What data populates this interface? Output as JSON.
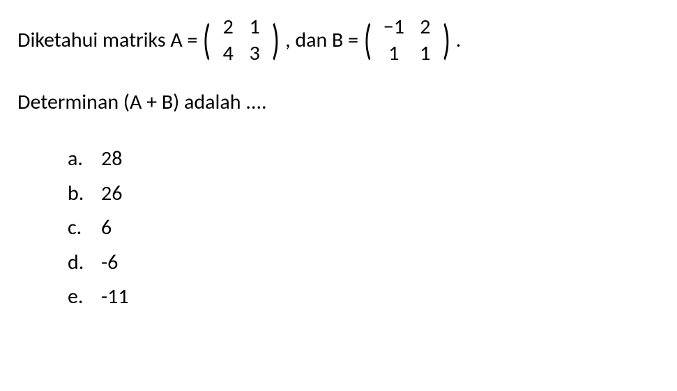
{
  "question": {
    "prefix": "Diketahui matriks A = ",
    "matrixA": {
      "rows": [
        [
          "2",
          "1"
        ],
        [
          "4",
          "3"
        ]
      ]
    },
    "middle": ", dan B = ",
    "matrixB": {
      "rows": [
        [
          "−1",
          "2"
        ],
        [
          "1",
          "1"
        ]
      ]
    },
    "suffix": ".",
    "line2": "Determinan (A + B) adalah ...."
  },
  "options": [
    {
      "letter": "a.",
      "value": "28"
    },
    {
      "letter": "b.",
      "value": "26"
    },
    {
      "letter": "c.",
      "value": "6"
    },
    {
      "letter": "d.",
      "value": "-6"
    },
    {
      "letter": "e.",
      "value": "-11"
    }
  ],
  "style": {
    "font_family": "Calibri, Arial, sans-serif",
    "font_size_pt": 22,
    "text_color": "#000000",
    "background_color": "#ffffff"
  }
}
